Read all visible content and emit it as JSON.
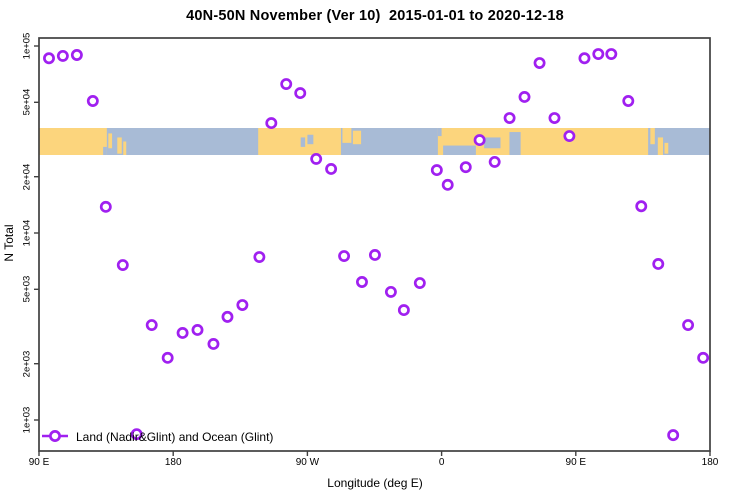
{
  "title": "40N-50N November (Ver 10)  2015-01-01 to 2020-12-18",
  "axes": {
    "x_label": "Longitude (deg E)",
    "y_label": "N Total",
    "x_ticks": [
      {
        "label": "90 E",
        "lon": 90
      },
      {
        "label": "180",
        "lon": 180
      },
      {
        "label": "90 W",
        "lon": 270
      },
      {
        "label": "0",
        "lon": 360
      },
      {
        "label": "90 E",
        "lon": 450
      },
      {
        "label": "180",
        "lon": 540
      }
    ],
    "y_ticks": [
      {
        "label": "1e+05",
        "value": 100000
      },
      {
        "label": "5e+04",
        "value": 50000
      },
      {
        "label": "2e+04",
        "value": 20000
      },
      {
        "label": "1e+04",
        "value": 10000
      },
      {
        "label": "5e+03",
        "value": 5000
      },
      {
        "label": "2e+03",
        "value": 2000
      },
      {
        "label": "1e+03",
        "value": 1000
      }
    ],
    "y_scale": "log"
  },
  "legend": {
    "label": "Land (Nadir&Glint) and Ocean (Glint)"
  },
  "colors": {
    "marker": "#a020f0",
    "land": "#fcd57d",
    "ocean": "#a8bbd6",
    "axis": "#404040"
  },
  "map_band": {
    "description": "world land/ocean strip for latitude 40N-50N drawn across plot",
    "ocean_range": [
      90,
      540
    ],
    "land_segments": [
      {
        "lon0": 90,
        "lon1": 135.5,
        "f0": 0,
        "f1": 1
      },
      {
        "lon0": 136.5,
        "lon1": 139,
        "f0": 0.2,
        "f1": 0.75
      },
      {
        "lon0": 142.5,
        "lon1": 145.5,
        "f0": 0.35,
        "f1": 0.95
      },
      {
        "lon0": 146.5,
        "lon1": 148.5,
        "f0": 0.5,
        "f1": 1
      },
      {
        "lon0": 237,
        "lon1": 292.5,
        "f0": 0,
        "f1": 1
      },
      {
        "lon0": 293.5,
        "lon1": 299.5,
        "f0": 0,
        "f1": 0.55
      },
      {
        "lon0": 300.5,
        "lon1": 306,
        "f0": 0.1,
        "f1": 0.6
      },
      {
        "lon0": 357.5,
        "lon1": 498.5,
        "f0": 0,
        "f1": 1
      },
      {
        "lon0": 500,
        "lon1": 503,
        "f0": 0,
        "f1": 0.6
      },
      {
        "lon0": 505,
        "lon1": 508.5,
        "f0": 0.35,
        "f1": 1
      },
      {
        "lon0": 509.5,
        "lon1": 512,
        "f0": 0.55,
        "f1": 0.95
      }
    ],
    "water_patches": [
      {
        "lon0": 133,
        "lon1": 135.5,
        "f0": 0.7,
        "f1": 1
      },
      {
        "lon0": 265.5,
        "lon1": 268.5,
        "f0": 0.35,
        "f1": 0.7
      },
      {
        "lon0": 270,
        "lon1": 274,
        "f0": 0.25,
        "f1": 0.6
      },
      {
        "lon0": 357.5,
        "lon1": 360,
        "f0": 0,
        "f1": 0.3
      },
      {
        "lon0": 361,
        "lon1": 383,
        "f0": 0.65,
        "f1": 1
      },
      {
        "lon0": 388.5,
        "lon1": 399.5,
        "f0": 0.35,
        "f1": 0.75
      },
      {
        "lon0": 405.5,
        "lon1": 413,
        "f0": 0.15,
        "f1": 1
      }
    ]
  },
  "chart_data": {
    "type": "scatter",
    "title": "40N-50N November (Ver 10)  2015-01-01 to 2020-12-18",
    "xlabel": "Longitude (deg E)",
    "ylabel": "N Total",
    "x_axis_note": "longitude axis runs 90E -> 180 -> 90W -> 0 -> 90E -> 180 (450 deg span, data wraps)",
    "xlim": [
      90,
      540
    ],
    "ylim": [
      700,
      110000
    ],
    "yscale": "log",
    "legend_entries": [
      "Land (Nadir&Glint) and Ocean (Glint)"
    ],
    "points": [
      [
        96.7,
        86000
      ],
      [
        106.0,
        88500
      ],
      [
        115.4,
        89500
      ],
      [
        126.1,
        50800
      ],
      [
        134.8,
        13800
      ],
      [
        146.2,
        6740
      ],
      [
        155.5,
        840
      ],
      [
        165.6,
        3220
      ],
      [
        176.3,
        2150
      ],
      [
        186.3,
        2920
      ],
      [
        196.3,
        3030
      ],
      [
        207.0,
        2550
      ],
      [
        216.4,
        3560
      ],
      [
        226.4,
        4120
      ],
      [
        237.8,
        7440
      ],
      [
        245.8,
        38700
      ],
      [
        255.8,
        62600
      ],
      [
        265.2,
        56000
      ],
      [
        275.9,
        24900
      ],
      [
        285.9,
        22000
      ],
      [
        294.6,
        7530
      ],
      [
        306.6,
        5470
      ],
      [
        315.3,
        7630
      ],
      [
        326.0,
        4840
      ],
      [
        334.7,
        3870
      ],
      [
        345.4,
        5400
      ],
      [
        356.8,
        21700
      ],
      [
        364.1,
        18100
      ],
      [
        376.2,
        22500
      ],
      [
        385.5,
        31400
      ],
      [
        395.6,
        24000
      ],
      [
        405.6,
        41200
      ],
      [
        415.6,
        53400
      ],
      [
        425.7,
        81100
      ],
      [
        435.7,
        41200
      ],
      [
        445.7,
        33000
      ],
      [
        455.8,
        86000
      ],
      [
        465.1,
        90600
      ],
      [
        473.8,
        90600
      ],
      [
        485.2,
        50800
      ],
      [
        493.9,
        13900
      ],
      [
        505.3,
        6830
      ],
      [
        515.3,
        830
      ],
      [
        525.3,
        3220
      ],
      [
        535.4,
        2150
      ]
    ]
  }
}
